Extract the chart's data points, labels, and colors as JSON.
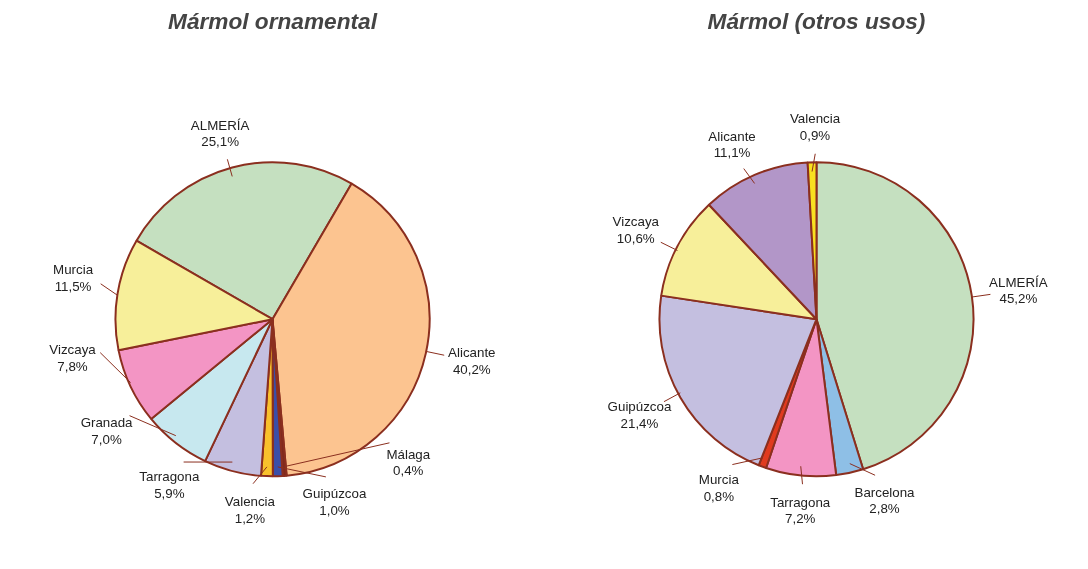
{
  "chart_data": [
    {
      "type": "pie",
      "title": "Mármol ornamental",
      "categories": [
        "ALMERÍA",
        "Alicante",
        "Málaga",
        "Guipúzcoa",
        "Valencia",
        "Tarragona",
        "Granada",
        "Vizcaya",
        "Murcia"
      ],
      "values": [
        25.1,
        40.2,
        0.4,
        1.0,
        1.2,
        5.9,
        7.0,
        7.8,
        11.5
      ],
      "value_labels": [
        "25,1%",
        "40,2%",
        "0,4%",
        "1,0%",
        "1,2%",
        "5,9%",
        "7,0%",
        "7,8%",
        "11,5%"
      ],
      "colors": [
        "#c5e0c0",
        "#fcc490",
        "#7f2a1e",
        "#3a4fa8",
        "#f9c12c",
        "#c4bfe0",
        "#c7e8ef",
        "#f395c4",
        "#f7ef9a"
      ]
    },
    {
      "type": "pie",
      "title": "Mármol (otros usos)",
      "categories": [
        "ALMERÍA",
        "Barcelona",
        "Tarragona",
        "Murcia",
        "Guipúzcoa",
        "Vizcaya",
        "Alicante",
        "Valencia"
      ],
      "values": [
        45.2,
        2.8,
        7.2,
        0.8,
        21.4,
        10.6,
        11.1,
        0.9
      ],
      "value_labels": [
        "45,2%",
        "2,8%",
        "7,2%",
        "0,8%",
        "21,4%",
        "10,6%",
        "11,1%",
        "0,9%"
      ],
      "colors": [
        "#c5e0c0",
        "#8ebfe6",
        "#f395c4",
        "#e03a1e",
        "#c4bfe0",
        "#f7ef9a",
        "#b296c8",
        "#f9e020"
      ]
    }
  ]
}
